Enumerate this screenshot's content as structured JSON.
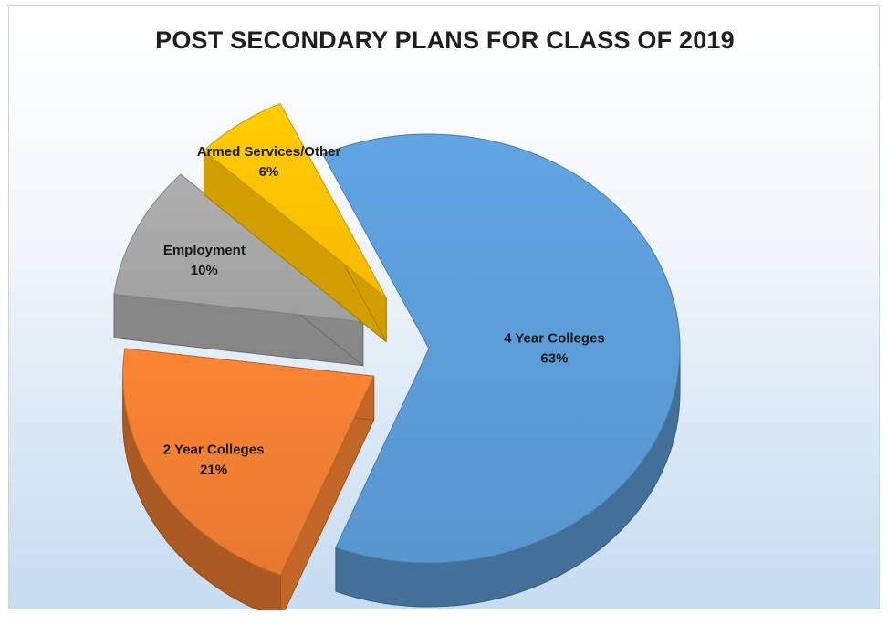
{
  "chart_data": {
    "type": "pie",
    "title": "POST SECONDARY PLANS FOR CLASS OF 2019",
    "three_d": true,
    "exploded": true,
    "slices": [
      {
        "label": "4 Year Colleges",
        "percent_label": "63%",
        "value": 63,
        "color": "#5b9bd5"
      },
      {
        "label": "2 Year Colleges",
        "percent_label": "21%",
        "value": 21,
        "color": "#ed7d31"
      },
      {
        "label": "Employment",
        "percent_label": "10%",
        "value": 10,
        "color": "#a5a5a5"
      },
      {
        "label": "Armed Services/Other",
        "percent_label": "6%",
        "value": 6,
        "color": "#ffc000"
      }
    ]
  }
}
